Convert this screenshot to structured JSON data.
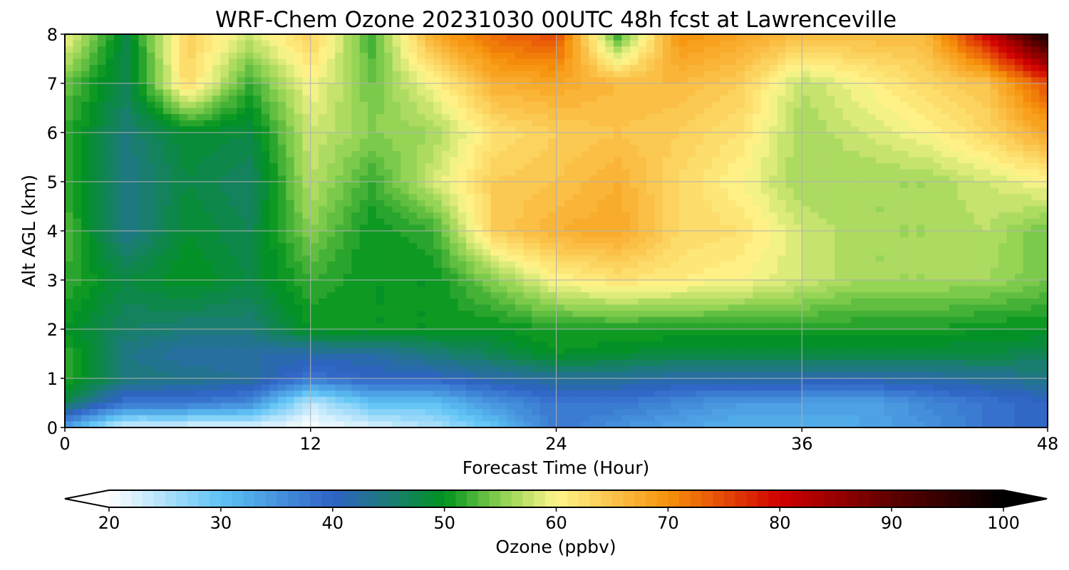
{
  "chart_data": {
    "type": "heatmap",
    "title": "WRF-Chem Ozone  20231030 00UTC 48h fcst at Lawrenceville",
    "xlabel": "Forecast Time (Hour)",
    "ylabel": "Alt AGL (km)",
    "xlim": [
      0,
      48
    ],
    "ylim": [
      0,
      8
    ],
    "x_ticks": [
      0,
      12,
      24,
      36,
      48
    ],
    "y_ticks": [
      0,
      1,
      2,
      3,
      4,
      5,
      6,
      7,
      8
    ],
    "grid": true,
    "x_hours": [
      0,
      3,
      6,
      9,
      12,
      15,
      18,
      21,
      24,
      27,
      30,
      33,
      36,
      39,
      42,
      45,
      48
    ],
    "z_km": [
      0,
      0.5,
      1,
      1.5,
      2,
      3,
      4,
      5,
      6,
      7,
      8
    ],
    "values_ppbv": [
      [
        33,
        22,
        22,
        22,
        20,
        22,
        25,
        30,
        38,
        35,
        33,
        32,
        32,
        33,
        35,
        38,
        40
      ],
      [
        47,
        38,
        38,
        36,
        24,
        30,
        30,
        35,
        38,
        38,
        36,
        34,
        34,
        33,
        36,
        38,
        40
      ],
      [
        52,
        45,
        44,
        43,
        38,
        40,
        40,
        42,
        43,
        43,
        42,
        42,
        42,
        42,
        42,
        43,
        44
      ],
      [
        52,
        44,
        42,
        42,
        42,
        42,
        45,
        47,
        50,
        49,
        48,
        48,
        48,
        48,
        48,
        48,
        47
      ],
      [
        50,
        46,
        45,
        45,
        50,
        50,
        50,
        50,
        51,
        51,
        51,
        51,
        51,
        51,
        51,
        50,
        50
      ],
      [
        52,
        48,
        50,
        48,
        52,
        50,
        50,
        55,
        60,
        62,
        61,
        60,
        58,
        56,
        56,
        56,
        54
      ],
      [
        53,
        44,
        49,
        47,
        55,
        50,
        52,
        64,
        67,
        68,
        63,
        62,
        58,
        56,
        56,
        57,
        54
      ],
      [
        52,
        44,
        48,
        46,
        57,
        52,
        58,
        64,
        65,
        67,
        63,
        60,
        56,
        56,
        56,
        58,
        60
      ],
      [
        52,
        45,
        49,
        48,
        58,
        55,
        56,
        62,
        64,
        65,
        64,
        62,
        56,
        58,
        60,
        63,
        68
      ],
      [
        54,
        47,
        63,
        52,
        60,
        54,
        60,
        67,
        68,
        66,
        66,
        64,
        57,
        60,
        63,
        65,
        75
      ],
      [
        60,
        48,
        64,
        58,
        64,
        52,
        68,
        73,
        75,
        52,
        70,
        68,
        66,
        66,
        66,
        80,
        98
      ]
    ]
  },
  "colorbar": {
    "label": "Ozone  (ppbv)",
    "min": 20,
    "max": 100,
    "extend": "both",
    "ticks": [
      20,
      30,
      40,
      50,
      60,
      70,
      80,
      90,
      100
    ],
    "palette_stops": [
      {
        "v": 20,
        "c": "#ffffff"
      },
      {
        "v": 30,
        "c": "#5ec3f5"
      },
      {
        "v": 40,
        "c": "#2f63c6"
      },
      {
        "v": 45,
        "c": "#1c7a78"
      },
      {
        "v": 50,
        "c": "#00931e"
      },
      {
        "v": 55,
        "c": "#8ad050"
      },
      {
        "v": 60,
        "c": "#fff68c"
      },
      {
        "v": 70,
        "c": "#f7920a"
      },
      {
        "v": 80,
        "c": "#d10000"
      },
      {
        "v": 90,
        "c": "#5e0000"
      },
      {
        "v": 100,
        "c": "#000000"
      }
    ]
  }
}
